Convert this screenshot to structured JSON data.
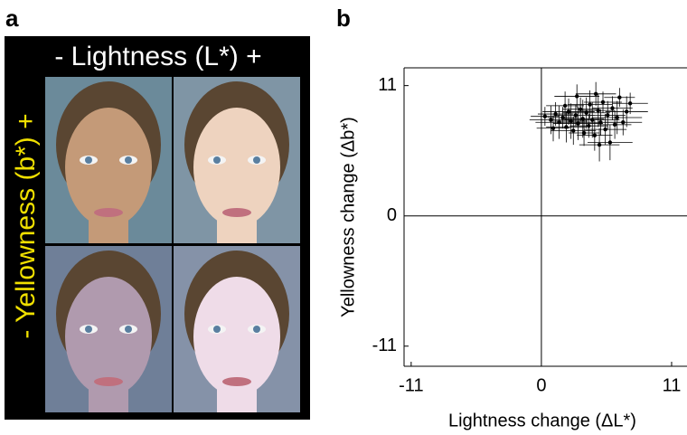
{
  "panel_a": {
    "label": "a",
    "title": "- Lightness (L*) +",
    "side_label": "- Yellowness (b*) +"
  },
  "chart_data": {
    "type": "scatter",
    "panel_label": "b",
    "x_label": "Lightness change (ΔL*)",
    "y_label": "Yellowness change (Δb*)",
    "xlim": [
      -11.6,
      12.3
    ],
    "ylim": [
      -12.7,
      12.5
    ],
    "xticks": [
      -11,
      0,
      11
    ],
    "yticks": [
      -11,
      0,
      11
    ],
    "series": [
      {
        "color": "#000000",
        "x": [
          0.3,
          0.8,
          1.2,
          1.5,
          1.8,
          2.1,
          2.3,
          2.5,
          2.7,
          2.9,
          3.1,
          3.3,
          3.5,
          3.6,
          3.8,
          4.0,
          4.1,
          4.3,
          4.5,
          4.6,
          4.8,
          5.0,
          5.2,
          5.4,
          5.6,
          5.8,
          6.0,
          6.2,
          6.4,
          6.6,
          6.9,
          7.2,
          7.5,
          3.0,
          2.0,
          1.0,
          4.9
        ],
        "y": [
          8.4,
          8.1,
          8.6,
          7.9,
          8.3,
          7.5,
          8.8,
          8.0,
          7.2,
          8.5,
          7.8,
          9.0,
          8.2,
          7.0,
          8.7,
          7.6,
          9.4,
          8.1,
          6.8,
          10.3,
          8.9,
          7.9,
          9.6,
          7.3,
          8.5,
          6.2,
          9.1,
          7.7,
          8.3,
          10.0,
          7.9,
          8.8,
          9.5,
          10.1,
          9.3,
          7.4,
          6.0
        ],
        "xerr": [
          1.2,
          1.8,
          1.5,
          2.0,
          1.3,
          1.7,
          2.2,
          1.4,
          1.9,
          1.6,
          2.1,
          1.5,
          1.8,
          1.3,
          2.0,
          1.6,
          1.9,
          2.3,
          1.5,
          1.7,
          1.4,
          2.0,
          1.6,
          1.8,
          1.5,
          1.9,
          1.7,
          1.4,
          2.1,
          1.3,
          1.6,
          1.8,
          1.5,
          1.9,
          1.6,
          1.4,
          1.7
        ],
        "yerr": [
          0.8,
          1.2,
          1.0,
          1.4,
          0.9,
          1.3,
          1.1,
          1.5,
          1.2,
          0.9,
          1.4,
          1.0,
          1.6,
          1.1,
          1.3,
          1.0,
          1.2,
          1.5,
          1.3,
          1.0,
          1.4,
          1.1,
          0.9,
          1.3,
          1.2,
          1.5,
          1.0,
          1.2,
          1.4,
          0.8,
          1.1,
          1.3,
          0.9,
          1.0,
          1.2,
          1.1,
          1.4
        ]
      }
    ]
  }
}
